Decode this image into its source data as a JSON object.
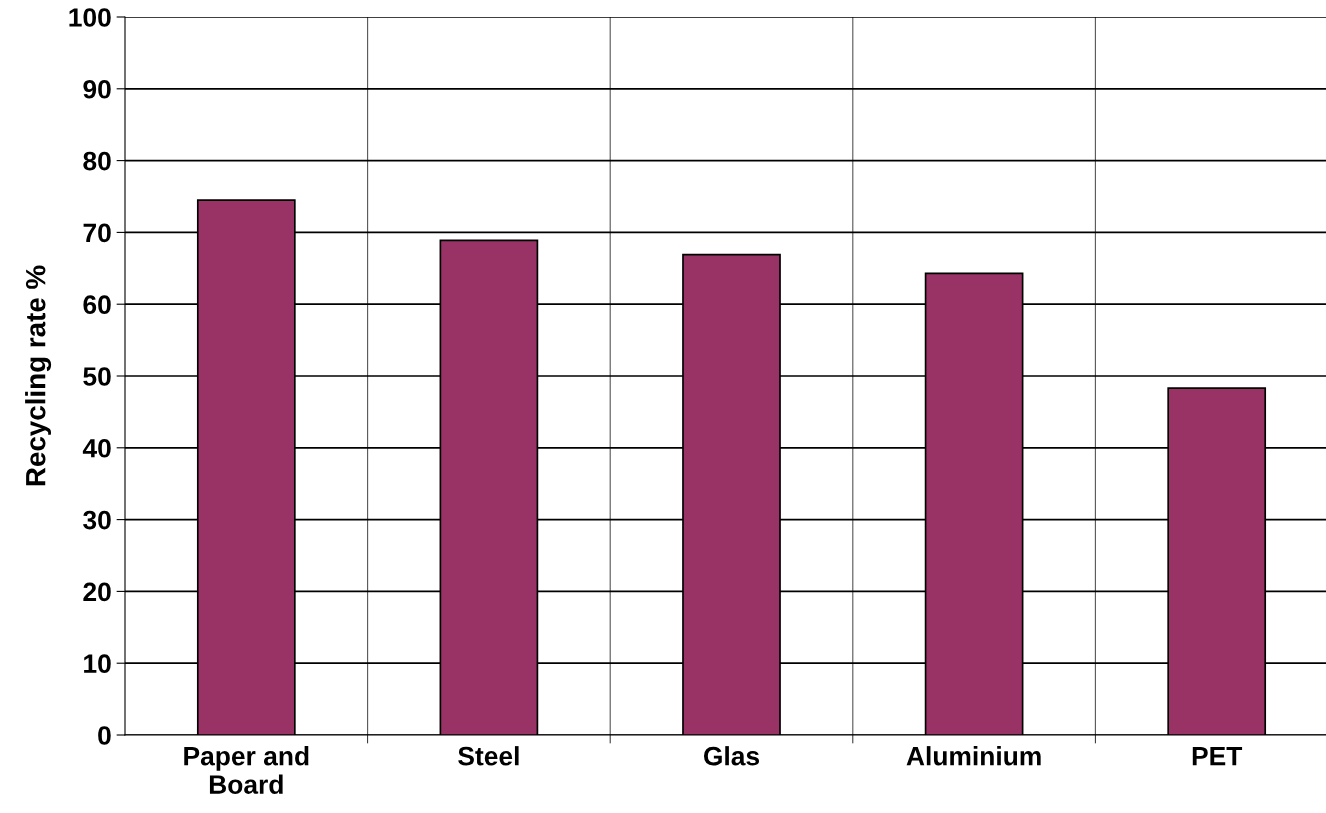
{
  "chart_data": {
    "type": "bar",
    "ylabel": "Recycling rate %",
    "categories": [
      "Paper and\nBoard",
      "Steel",
      "Glas",
      "Aluminium",
      "PET"
    ],
    "values": [
      74.5,
      68.9,
      66.9,
      64.3,
      48.3
    ],
    "color": "#993366",
    "ylim": [
      0,
      100
    ],
    "yticks": [
      0,
      10,
      20,
      30,
      40,
      50,
      60,
      70,
      80,
      90,
      100
    ],
    "grid": true
  }
}
